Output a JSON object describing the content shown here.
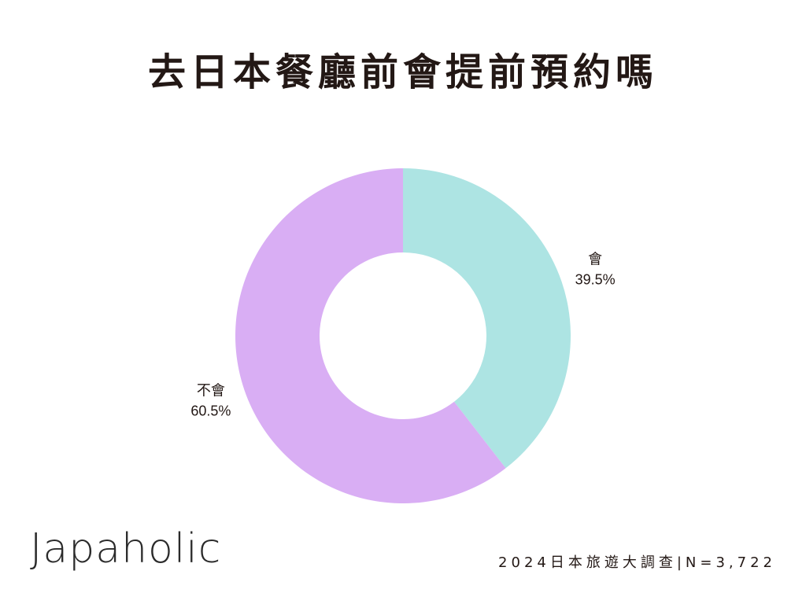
{
  "chart_data": {
    "type": "pie",
    "title": "去日本餐廳前會提前預約嗎",
    "donut": true,
    "slices": [
      {
        "label": "會",
        "value": 39.5,
        "display": "39.5%",
        "color": "#ade4e3"
      },
      {
        "label": "不會",
        "value": 60.5,
        "display": "60.5%",
        "color": "#d9aef4"
      }
    ]
  },
  "brand": "Japaholic",
  "footnote": "2024日本旅遊大調查|N=3,722"
}
